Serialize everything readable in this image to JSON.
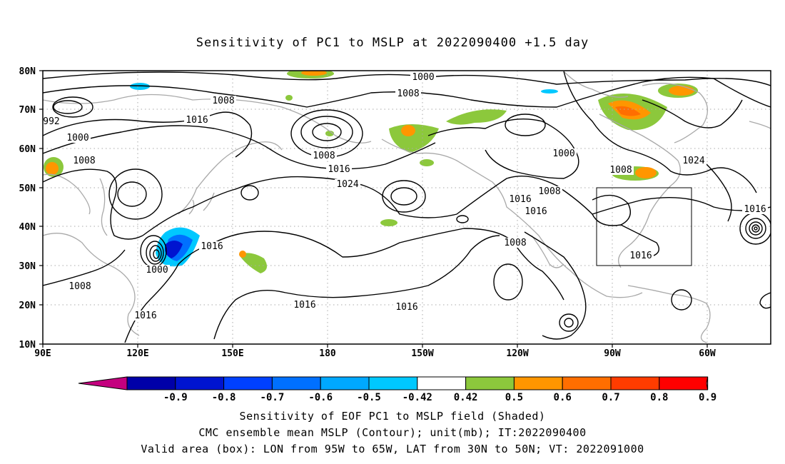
{
  "title": "Sensitivity of PC1 to MSLP at 2022090400 +1.5 day",
  "map": {
    "lat_labels": [
      "80N",
      "70N",
      "60N",
      "50N",
      "40N",
      "30N",
      "20N",
      "10N"
    ],
    "lon_labels": [
      "90E",
      "120E",
      "150E",
      "180",
      "150W",
      "120W",
      "90W",
      "60W"
    ]
  },
  "contour_labels": [
    "1000",
    "1008",
    "1008",
    "992",
    "1000",
    "1008",
    "1016",
    "1008",
    "1016",
    "1024",
    "1000",
    "1008",
    "1016",
    "1016",
    "1008",
    "1024",
    "1016",
    "1016",
    "1000",
    "1008",
    "1016",
    "1016",
    "1016",
    "1008",
    "1016"
  ],
  "colorbar": {
    "labels": [
      "-0.9",
      "-0.8",
      "-0.7",
      "-0.6",
      "-0.5",
      "-0.42",
      "0.42",
      "0.5",
      "0.6",
      "0.7",
      "0.8",
      "0.9"
    ],
    "colors": [
      "#c4007f",
      "#0000a8",
      "#0014d0",
      "#0040ff",
      "#0070ff",
      "#00a8ff",
      "#00c8ff",
      "#ffffff",
      "#8cc83c",
      "#ff9600",
      "#ff6e00",
      "#ff3c00",
      "#ff0000",
      "#ff9ec8"
    ]
  },
  "shade_colors": {
    "positive_low": "#8cc83c",
    "positive_mid": "#ff9600",
    "positive_high": "#ff6e00",
    "negative_low": "#00c8ff",
    "negative_mid": "#0070ff",
    "negative_high": "#0014d0"
  },
  "captions": [
    "Sensitivity of EOF PC1 to MSLP field (Shaded)",
    "CMC ensemble mean MSLP (Contour); unit(mb); IT:2022090400",
    "Valid area (box): LON from 95W to 65W, LAT from 30N to 50N; VT: 2022091000"
  ]
}
